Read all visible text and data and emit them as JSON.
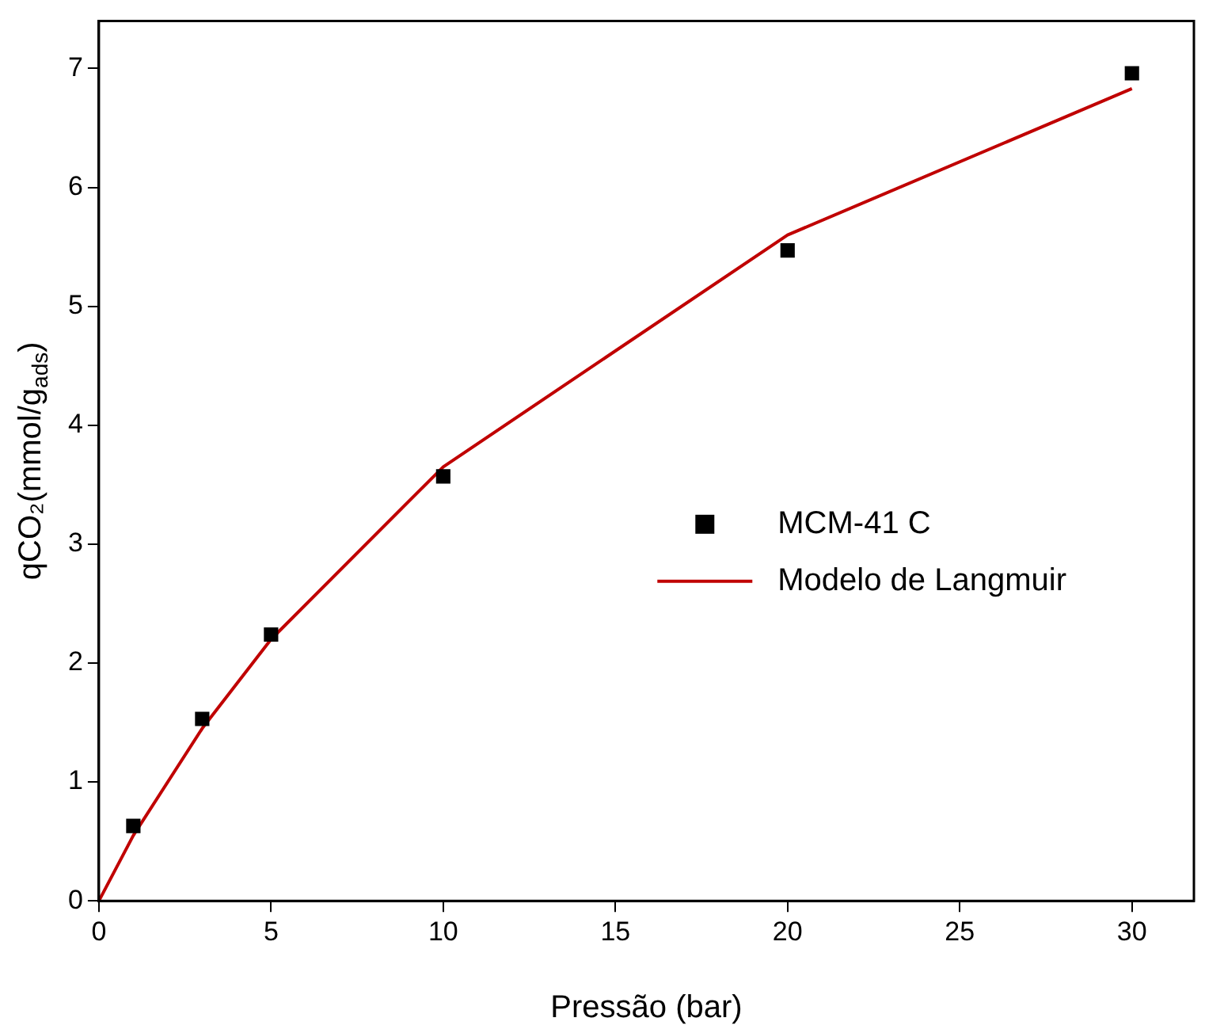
{
  "chart_data": {
    "type": "scatter",
    "xlabel": "Pressão (bar)",
    "ylabel": "qCO₂(mmol/g$_{ads}$)",
    "x": [
      1,
      3,
      5,
      10,
      20,
      30
    ],
    "series": [
      {
        "name": "MCM-41 C",
        "type": "scatter",
        "color": "#000000",
        "marker": "square",
        "values": [
          0.63,
          1.53,
          2.24,
          3.57,
          5.47,
          6.96
        ]
      },
      {
        "name": "Modelo de Langmuir",
        "type": "line",
        "color": "#c00000",
        "marker": "none",
        "line_style": "solid",
        "x": [
          0,
          1,
          3,
          5,
          10,
          20,
          30
        ],
        "values": [
          0,
          0.55,
          1.45,
          2.2,
          3.65,
          5.6,
          6.83
        ]
      }
    ],
    "xlim": [
      0,
      31.8
    ],
    "ylim": [
      0,
      7.4
    ],
    "xticks": [
      0,
      5,
      10,
      15,
      20,
      25,
      30
    ],
    "yticks": [
      0,
      1,
      2,
      3,
      4,
      5,
      6,
      7
    ],
    "grid": false,
    "legend": "right"
  }
}
